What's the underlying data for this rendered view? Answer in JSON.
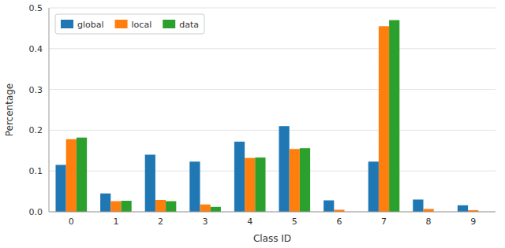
{
  "chart_data": {
    "type": "bar",
    "categories": [
      "0",
      "1",
      "2",
      "3",
      "4",
      "5",
      "6",
      "7",
      "8",
      "9"
    ],
    "series": [
      {
        "name": "global",
        "color": "#1f77b4",
        "values": [
          0.115,
          0.045,
          0.14,
          0.123,
          0.172,
          0.21,
          0.028,
          0.123,
          0.03,
          0.016
        ]
      },
      {
        "name": "local",
        "color": "#ff7f0e",
        "values": [
          0.178,
          0.026,
          0.029,
          0.018,
          0.132,
          0.154,
          0.005,
          0.455,
          0.007,
          0.004
        ]
      },
      {
        "name": "data",
        "color": "#2ca02c",
        "values": [
          0.182,
          0.027,
          0.026,
          0.012,
          0.133,
          0.156,
          0.0,
          0.47,
          0.0,
          0.0
        ]
      }
    ],
    "xlabel": "Class ID",
    "ylabel": "Percentage",
    "ylim": [
      0.0,
      0.5
    ],
    "yticks": [
      {
        "value": 0.0,
        "label": "0.0"
      },
      0.1,
      0.2,
      0.3,
      0.4,
      0.5
    ],
    "grid": true,
    "legend": "upper left"
  }
}
